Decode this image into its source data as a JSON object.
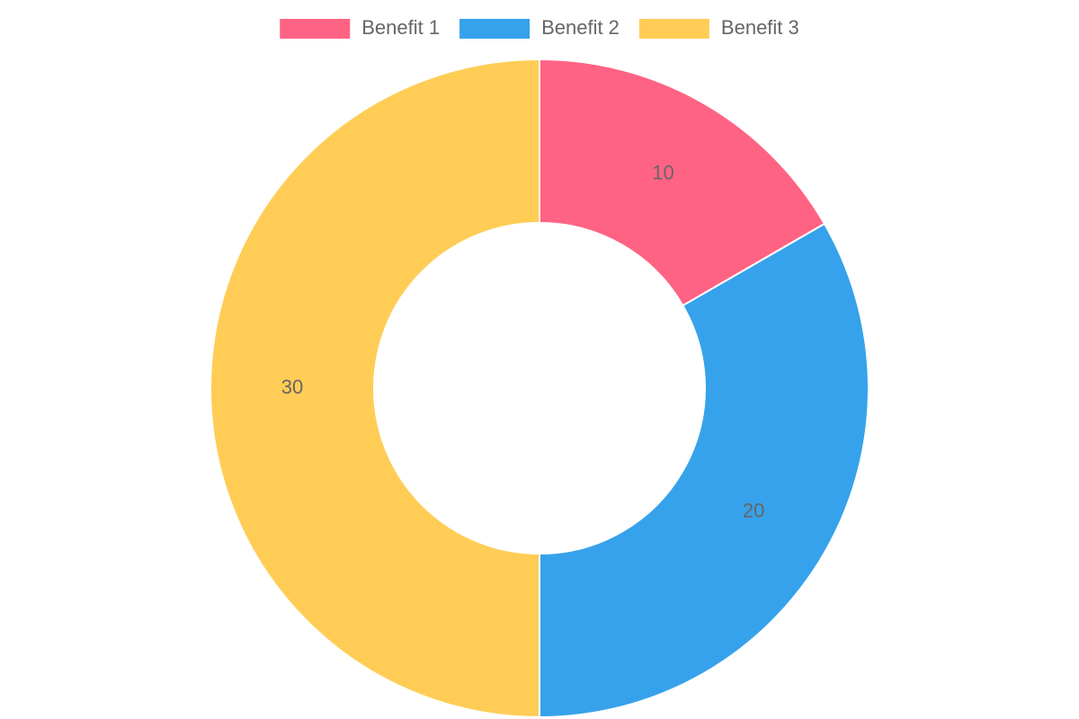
{
  "chart_data": {
    "type": "doughnut",
    "categories": [
      "Benefit 1",
      "Benefit 2",
      "Benefit 3"
    ],
    "values": [
      10,
      20,
      30
    ],
    "colors": [
      "#ff6384",
      "#36a2eb",
      "#ffcd56"
    ],
    "legend": "top"
  }
}
